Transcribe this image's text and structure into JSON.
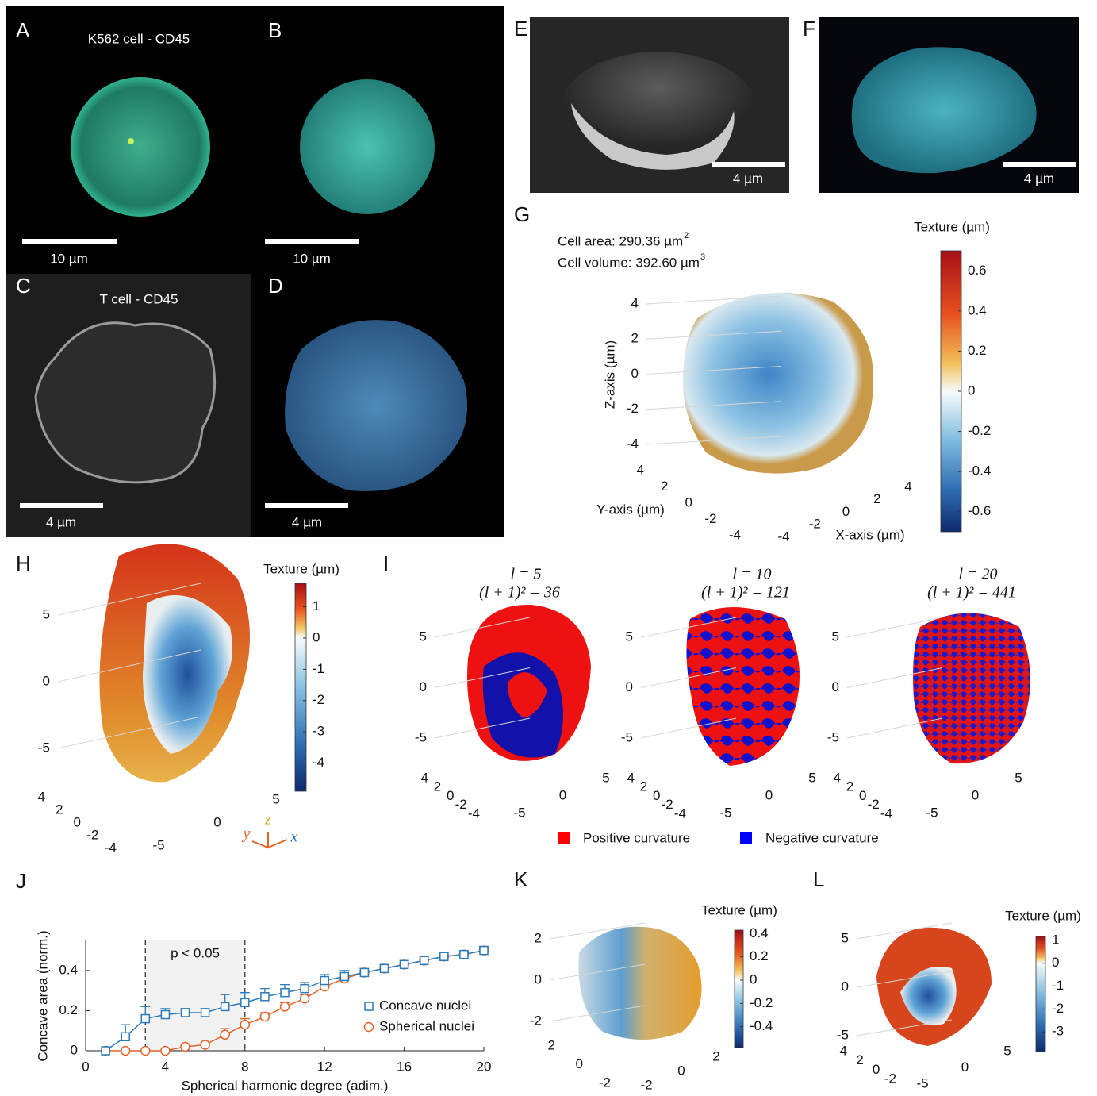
{
  "panels": {
    "A": {
      "label": "A",
      "title": "K562 cell - CD45",
      "scale_bar": "10 µm"
    },
    "B": {
      "label": "B",
      "scale_bar": "10 µm"
    },
    "C": {
      "label": "C",
      "title": "T cell - CD45",
      "scale_bar": "4 µm"
    },
    "D": {
      "label": "D",
      "scale_bar": "4 µm"
    },
    "E": {
      "label": "E",
      "scale_bar": "4 µm"
    },
    "F": {
      "label": "F",
      "scale_bar": "4 µm"
    },
    "G": {
      "label": "G",
      "area_label": "Cell area: 290.36 µm",
      "area_exp": "2",
      "volume_label": "Cell volume: 392.60 µm",
      "volume_exp": "3",
      "colorbar_title": "Texture (µm)",
      "colorbar_lim": [
        -0.7,
        0.7
      ],
      "colorbar_ticks": [
        0.6,
        0.4,
        0.2,
        0,
        -0.2,
        -0.4,
        -0.6
      ],
      "z_label": "Z-axis (µm)",
      "y_label": "Y-axis (µm)",
      "x_label": "X-axis (µm)",
      "z_ticks": [
        4,
        2,
        0,
        -2,
        -4
      ],
      "y_ticks": [
        4,
        2,
        0,
        -2,
        -4
      ],
      "x_ticks": [
        -4,
        -2,
        0,
        2,
        4
      ]
    },
    "H": {
      "label": "H",
      "colorbar_title": "Texture (µm)",
      "colorbar_lim": [
        -4.9,
        1.75
      ],
      "colorbar_ticks": [
        1,
        0,
        -1,
        -2,
        -3,
        -4
      ],
      "z_ticks": [
        5,
        0,
        -5
      ],
      "y_ticks": [
        4,
        2,
        0,
        -2,
        -4
      ],
      "x_ticks": [
        -5,
        0,
        5
      ],
      "triad": [
        "y",
        "z",
        "x"
      ]
    },
    "I": {
      "label": "I",
      "plots": [
        {
          "degree_label": "l = 5",
          "count_label": "(l + 1)² = 36"
        },
        {
          "degree_label": "l = 10",
          "count_label": "(l + 1)² = 121"
        },
        {
          "degree_label": "l = 20",
          "count_label": "(l + 1)² = 441"
        }
      ],
      "z_ticks": [
        5,
        0,
        -5
      ],
      "y_ticks": [
        4,
        2,
        0,
        -2,
        -4
      ],
      "x_ticks": [
        -5,
        0,
        5
      ],
      "legend": [
        {
          "name": "Positive curvature",
          "color": "#ff0000"
        },
        {
          "name": "Negative curvature",
          "color": "#0000ff"
        }
      ]
    },
    "K": {
      "label": "K",
      "colorbar_title": "Texture (µm)",
      "colorbar_lim": [
        -0.58,
        0.43
      ],
      "colorbar_ticks": [
        0.4,
        0.2,
        0,
        -0.2,
        -0.4
      ],
      "z_ticks": [
        2,
        0,
        -2
      ],
      "y_ticks": [
        2,
        0,
        -2
      ],
      "x_ticks": [
        -2,
        0,
        2
      ]
    },
    "L": {
      "label": "L",
      "colorbar_title": "Texture (µm)",
      "colorbar_lim": [
        -3.86,
        1.17
      ],
      "colorbar_ticks": [
        1,
        0,
        -1,
        -2,
        -3
      ],
      "z_ticks": [
        5,
        0,
        -5
      ],
      "y_ticks": [
        4,
        2,
        0,
        -2
      ],
      "x_ticks": [
        -5,
        0,
        5
      ]
    }
  },
  "chart_data": {
    "type": "line",
    "label": "J",
    "x_label": "Spherical harmonic degree (adim.)",
    "y_label": "Concave area (norm.)",
    "x": [
      1,
      2,
      3,
      4,
      5,
      6,
      7,
      8,
      9,
      10,
      11,
      12,
      13,
      14,
      15,
      16,
      17,
      18,
      19,
      20
    ],
    "series": [
      {
        "name": "Concave nuclei",
        "color": "#2b7bba",
        "marker": "square",
        "values": [
          0,
          0.07,
          0.16,
          0.18,
          0.19,
          0.19,
          0.22,
          0.24,
          0.27,
          0.29,
          0.31,
          0.35,
          0.37,
          0.39,
          0.41,
          0.43,
          0.45,
          0.47,
          0.48,
          0.5
        ],
        "errors": [
          0,
          0.06,
          0.06,
          0.03,
          0.02,
          0.02,
          0.06,
          0.05,
          0.04,
          0.04,
          0.03,
          0.03,
          0.03,
          0.02,
          0.02,
          0.02,
          0.02,
          0.02,
          0.02,
          0.02
        ]
      },
      {
        "name": "Spherical nuclei",
        "color": "#e0642a",
        "marker": "circle",
        "values": [
          0,
          0,
          0,
          0,
          0.02,
          0.03,
          0.08,
          0.13,
          0.17,
          0.22,
          0.26,
          0.32,
          0.36,
          0.39,
          0.41,
          0.43,
          0.45,
          0.47,
          0.48,
          0.5
        ],
        "errors": [
          0,
          0,
          0,
          0,
          0.01,
          0.01,
          0.03,
          0.03,
          0.02,
          0.02,
          0.02,
          0.02,
          0.01,
          0.01,
          0.01,
          0.01,
          0.01,
          0.01,
          0.01,
          0.02
        ]
      }
    ],
    "highlight_range": [
      3,
      8
    ],
    "annotation": "p < 0.05",
    "xlim": [
      0,
      20
    ],
    "ylim": [
      0,
      0.55
    ],
    "xticks": [
      0,
      4,
      8,
      12,
      16,
      20
    ],
    "yticks": [
      0,
      0.2,
      0.4
    ],
    "legend": "lower right"
  }
}
